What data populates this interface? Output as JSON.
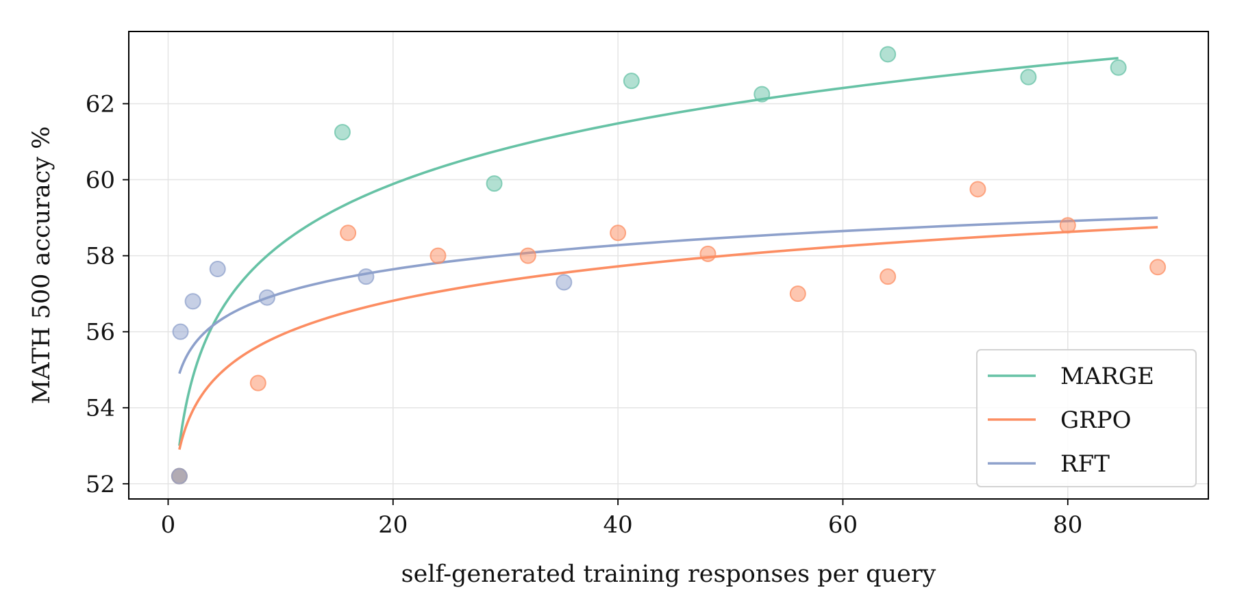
{
  "chart_data": {
    "type": "scatter",
    "title": "",
    "xlabel": "self-generated training responses per query",
    "ylabel": "MATH 500 accuracy %",
    "xlim": [
      -3.5,
      92.5
    ],
    "ylim": [
      51.6,
      63.9
    ],
    "xticks": [
      0,
      20,
      40,
      60,
      80
    ],
    "yticks": [
      52,
      54,
      56,
      58,
      60,
      62
    ],
    "grid": true,
    "legend_position": "lower-right",
    "series": [
      {
        "name": "MARGE",
        "color": "#66c2a5",
        "points": [
          {
            "x": 1,
            "y": 52.2
          },
          {
            "x": 15.5,
            "y": 61.25
          },
          {
            "x": 29,
            "y": 59.9
          },
          {
            "x": 41.2,
            "y": 62.6
          },
          {
            "x": 52.8,
            "y": 62.25
          },
          {
            "x": 64,
            "y": 63.3
          },
          {
            "x": 76.5,
            "y": 62.7
          },
          {
            "x": 84.5,
            "y": 62.95
          }
        ],
        "fit": {
          "x_start": 1,
          "x_end": 84.5,
          "y_start": 53.0,
          "y_end": 63.2
        }
      },
      {
        "name": "GRPO",
        "color": "#fc8d62",
        "points": [
          {
            "x": 1,
            "y": 52.2
          },
          {
            "x": 8,
            "y": 54.65
          },
          {
            "x": 16,
            "y": 58.6
          },
          {
            "x": 24,
            "y": 58.0
          },
          {
            "x": 32,
            "y": 58.0
          },
          {
            "x": 40,
            "y": 58.6
          },
          {
            "x": 48,
            "y": 58.05
          },
          {
            "x": 56,
            "y": 57.0
          },
          {
            "x": 64,
            "y": 57.45
          },
          {
            "x": 72,
            "y": 59.75
          },
          {
            "x": 80,
            "y": 58.8
          },
          {
            "x": 88,
            "y": 57.7
          }
        ],
        "fit": {
          "x_start": 1,
          "x_end": 88,
          "y_start": 52.9,
          "y_end": 58.75
        }
      },
      {
        "name": "RFT",
        "color": "#8da0cb",
        "points": [
          {
            "x": 1,
            "y": 52.2
          },
          {
            "x": 1.1,
            "y": 56.0
          },
          {
            "x": 2.2,
            "y": 56.8
          },
          {
            "x": 4.4,
            "y": 57.65
          },
          {
            "x": 8.8,
            "y": 56.9
          },
          {
            "x": 17.6,
            "y": 57.45
          },
          {
            "x": 35.2,
            "y": 57.3
          }
        ],
        "fit": {
          "x_start": 1,
          "x_end": 88,
          "y_start": 54.9,
          "y_end": 59.0
        }
      }
    ]
  }
}
